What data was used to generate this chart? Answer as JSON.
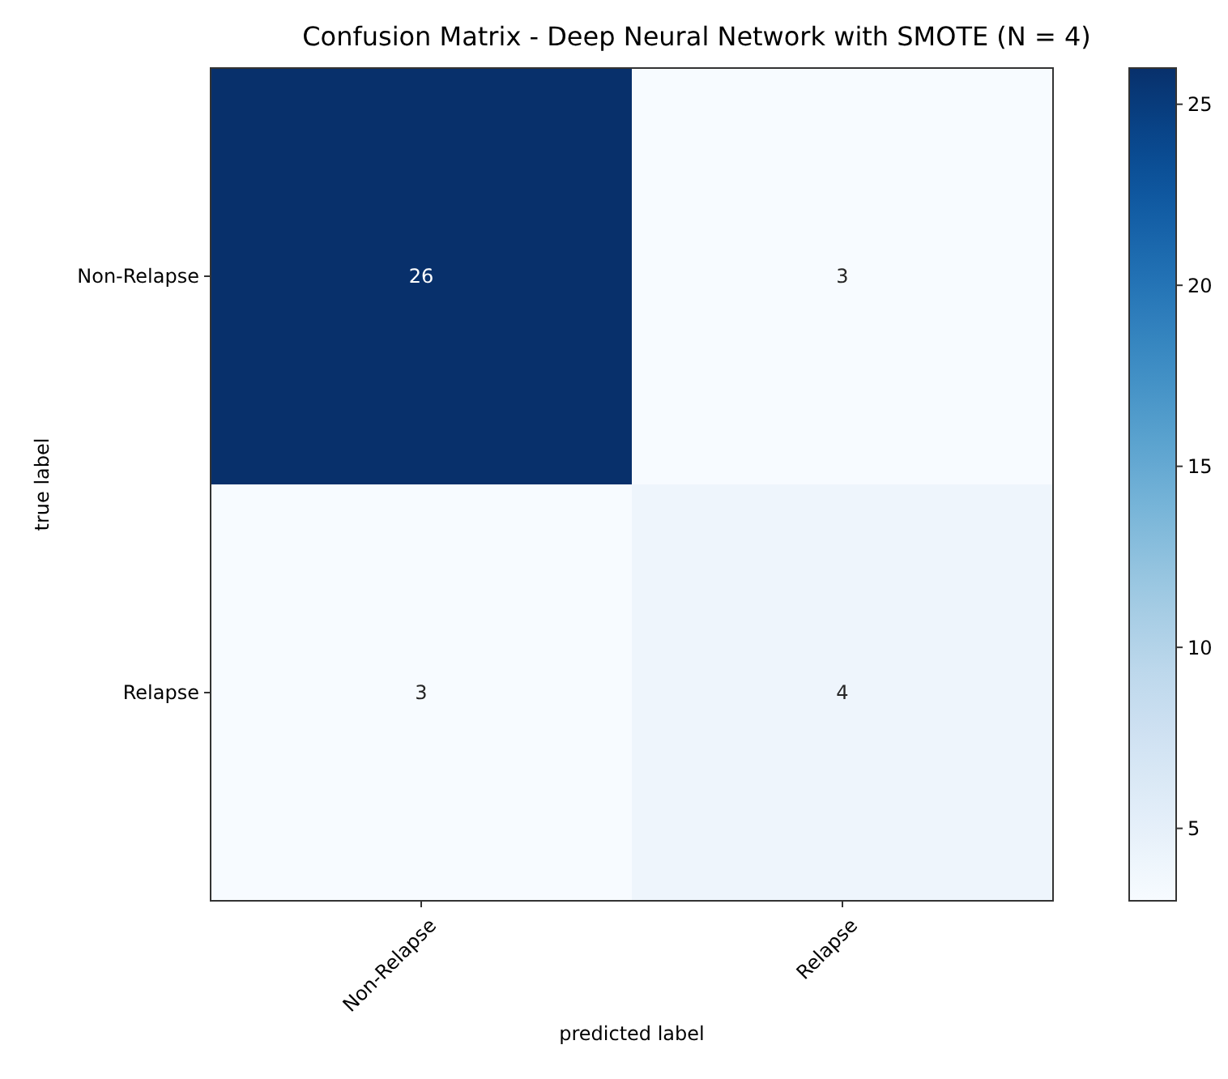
{
  "chart_data": {
    "type": "heatmap",
    "title": "Confusion Matrix - Deep Neural Network with SMOTE (N = 4)",
    "xlabel": "predicted label",
    "ylabel": "true label",
    "categories": [
      "Non-Relapse",
      "Relapse"
    ],
    "y_categories": [
      "Non-Relapse",
      "Relapse"
    ],
    "cells": [
      [
        26,
        3
      ],
      [
        3,
        4
      ]
    ],
    "clim": [
      3,
      26
    ],
    "cticks": [
      5,
      10,
      15,
      20,
      25
    ],
    "data_labels": true
  }
}
